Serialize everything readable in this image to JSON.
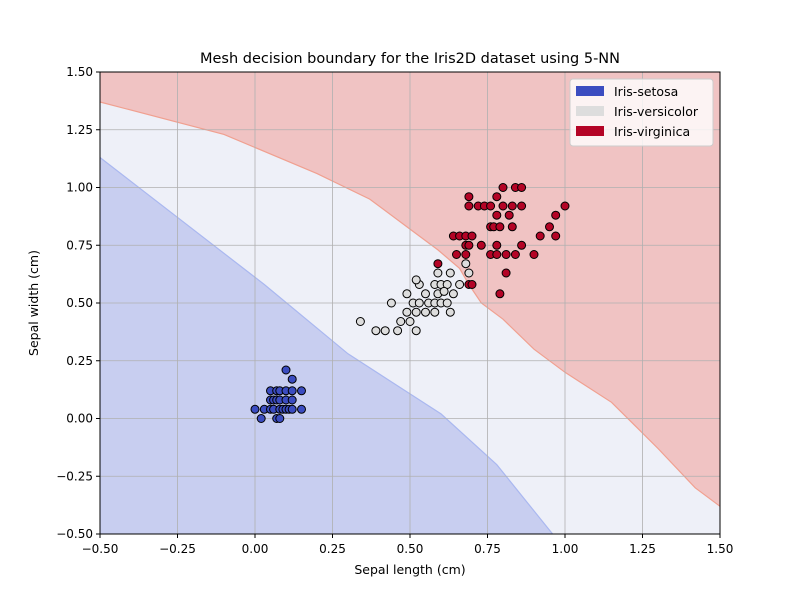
{
  "chart_data": {
    "type": "scatter",
    "title": "Mesh decision boundary for the Iris2D dataset using 5-NN",
    "xlabel": "Sepal length (cm)",
    "ylabel": "Sepal width (cm)",
    "xlim": [
      -0.5,
      1.5
    ],
    "ylim": [
      -0.5,
      1.5
    ],
    "xticks": [
      -0.5,
      -0.25,
      0.0,
      0.25,
      0.5,
      0.75,
      1.0,
      1.25,
      1.5
    ],
    "yticks": [
      -0.5,
      -0.25,
      0.0,
      0.25,
      0.5,
      0.75,
      1.0,
      1.25,
      1.5
    ],
    "xtick_labels": [
      "−0.50",
      "−0.25",
      "0.00",
      "0.25",
      "0.50",
      "0.75",
      "1.00",
      "1.25",
      "1.50"
    ],
    "ytick_labels": [
      "−0.50",
      "−0.25",
      "0.00",
      "0.25",
      "0.50",
      "0.75",
      "1.00",
      "1.25",
      "1.50"
    ],
    "grid": true,
    "legend_position": "upper right",
    "legend": [
      "Iris-setosa",
      "Iris-versicolor",
      "Iris-virginica"
    ],
    "regions": [
      {
        "class": "Iris-setosa",
        "color": "#c8cef0",
        "edge": "#aab8f0",
        "polygon": [
          [
            -0.5,
            1.13
          ],
          [
            0.03,
            0.58
          ],
          [
            0.3,
            0.28
          ],
          [
            0.6,
            0.02
          ],
          [
            0.78,
            -0.2
          ],
          [
            0.96,
            -0.5
          ],
          [
            -0.5,
            -0.5
          ]
        ]
      },
      {
        "class": "Iris-virginica",
        "color": "#f0c3c3",
        "edge": "#f0a090",
        "polygon": [
          [
            -0.5,
            1.37
          ],
          [
            -0.1,
            1.23
          ],
          [
            0.2,
            1.06
          ],
          [
            0.37,
            0.95
          ],
          [
            0.5,
            0.82
          ],
          [
            0.59,
            0.73
          ],
          [
            0.66,
            0.65
          ],
          [
            0.69,
            0.58
          ],
          [
            0.73,
            0.5
          ],
          [
            0.8,
            0.43
          ],
          [
            0.9,
            0.3
          ],
          [
            1.0,
            0.2
          ],
          [
            1.15,
            0.07
          ],
          [
            1.3,
            -0.13
          ],
          [
            1.42,
            -0.3
          ],
          [
            1.5,
            -0.38
          ],
          [
            1.5,
            1.5
          ],
          [
            -0.5,
            1.5
          ]
        ]
      }
    ],
    "background_color": "#eef0f8",
    "series": [
      {
        "name": "Iris-setosa",
        "color": "#3b4cc0",
        "points": [
          [
            0.0,
            0.04
          ],
          [
            0.02,
            0.0
          ],
          [
            0.03,
            0.04
          ],
          [
            0.05,
            0.04
          ],
          [
            0.06,
            0.04
          ],
          [
            0.07,
            0.0
          ],
          [
            0.08,
            0.0
          ],
          [
            0.08,
            0.04
          ],
          [
            0.09,
            0.04
          ],
          [
            0.1,
            0.04
          ],
          [
            0.11,
            0.04
          ],
          [
            0.12,
            0.04
          ],
          [
            0.15,
            0.04
          ],
          [
            0.05,
            0.08
          ],
          [
            0.06,
            0.08
          ],
          [
            0.07,
            0.08
          ],
          [
            0.08,
            0.08
          ],
          [
            0.1,
            0.08
          ],
          [
            0.12,
            0.08
          ],
          [
            0.05,
            0.12
          ],
          [
            0.07,
            0.12
          ],
          [
            0.08,
            0.12
          ],
          [
            0.1,
            0.12
          ],
          [
            0.12,
            0.12
          ],
          [
            0.15,
            0.12
          ],
          [
            0.12,
            0.17
          ],
          [
            0.1,
            0.21
          ]
        ]
      },
      {
        "name": "Iris-versicolor",
        "color": "#dddddd",
        "points": [
          [
            0.34,
            0.42
          ],
          [
            0.39,
            0.38
          ],
          [
            0.42,
            0.38
          ],
          [
            0.46,
            0.38
          ],
          [
            0.52,
            0.38
          ],
          [
            0.47,
            0.42
          ],
          [
            0.5,
            0.42
          ],
          [
            0.49,
            0.46
          ],
          [
            0.52,
            0.46
          ],
          [
            0.55,
            0.46
          ],
          [
            0.58,
            0.46
          ],
          [
            0.63,
            0.46
          ],
          [
            0.44,
            0.5
          ],
          [
            0.51,
            0.5
          ],
          [
            0.53,
            0.5
          ],
          [
            0.56,
            0.5
          ],
          [
            0.58,
            0.5
          ],
          [
            0.6,
            0.5
          ],
          [
            0.62,
            0.5
          ],
          [
            0.49,
            0.54
          ],
          [
            0.55,
            0.54
          ],
          [
            0.59,
            0.54
          ],
          [
            0.64,
            0.54
          ],
          [
            0.53,
            0.58
          ],
          [
            0.58,
            0.58
          ],
          [
            0.6,
            0.58
          ],
          [
            0.62,
            0.58
          ],
          [
            0.66,
            0.58
          ],
          [
            0.59,
            0.63
          ],
          [
            0.63,
            0.63
          ],
          [
            0.69,
            0.63
          ],
          [
            0.68,
            0.67
          ],
          [
            0.52,
            0.6
          ],
          [
            0.61,
            0.55
          ]
        ]
      },
      {
        "name": "Iris-virginica",
        "color": "#b40426",
        "points": [
          [
            0.59,
            0.67
          ],
          [
            0.65,
            0.71
          ],
          [
            0.68,
            0.71
          ],
          [
            0.76,
            0.71
          ],
          [
            0.78,
            0.71
          ],
          [
            0.81,
            0.71
          ],
          [
            0.84,
            0.71
          ],
          [
            0.9,
            0.71
          ],
          [
            0.68,
            0.75
          ],
          [
            0.69,
            0.75
          ],
          [
            0.73,
            0.75
          ],
          [
            0.78,
            0.75
          ],
          [
            0.86,
            0.75
          ],
          [
            0.64,
            0.79
          ],
          [
            0.66,
            0.79
          ],
          [
            0.68,
            0.79
          ],
          [
            0.7,
            0.79
          ],
          [
            0.92,
            0.79
          ],
          [
            0.97,
            0.79
          ],
          [
            0.76,
            0.83
          ],
          [
            0.77,
            0.83
          ],
          [
            0.79,
            0.83
          ],
          [
            0.83,
            0.83
          ],
          [
            0.95,
            0.83
          ],
          [
            0.78,
            0.88
          ],
          [
            0.82,
            0.88
          ],
          [
            0.97,
            0.88
          ],
          [
            0.69,
            0.92
          ],
          [
            0.72,
            0.92
          ],
          [
            0.74,
            0.92
          ],
          [
            0.76,
            0.92
          ],
          [
            0.8,
            0.92
          ],
          [
            0.83,
            0.92
          ],
          [
            0.86,
            0.92
          ],
          [
            1.0,
            0.92
          ],
          [
            0.69,
            0.96
          ],
          [
            0.78,
            0.96
          ],
          [
            0.8,
            1.0
          ],
          [
            0.84,
            1.0
          ],
          [
            0.86,
            1.0
          ],
          [
            0.69,
            0.58
          ],
          [
            0.7,
            0.58
          ],
          [
            0.79,
            0.54
          ],
          [
            0.81,
            0.63
          ]
        ]
      }
    ]
  }
}
